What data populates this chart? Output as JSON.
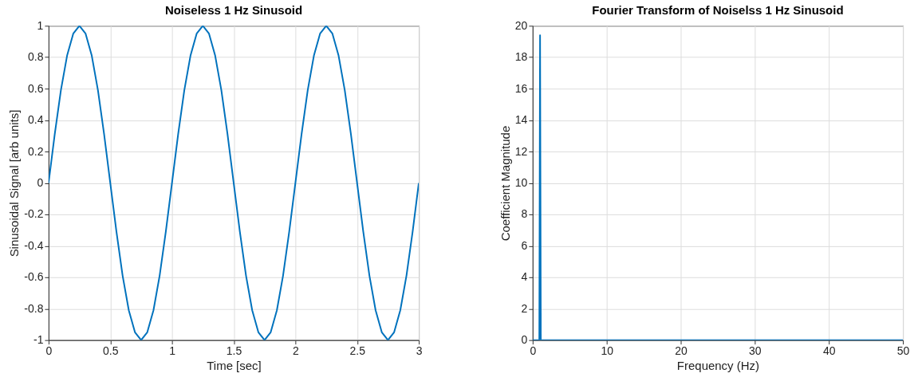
{
  "chart_data": [
    {
      "type": "line",
      "title": "Noiseless 1 Hz Sinusoid",
      "xlabel": "Time [sec]",
      "ylabel": "Sinusoidal Signal [arb units]",
      "grid": true,
      "xlim": [
        0,
        3
      ],
      "xticks": [
        0,
        0.5,
        1,
        1.5,
        2,
        2.5,
        3
      ],
      "ylim": [
        -1,
        1
      ],
      "yticks": [
        -1,
        -0.8,
        -0.6,
        -0.4,
        -0.2,
        0,
        0.2,
        0.4,
        0.6,
        0.8,
        1
      ],
      "series": [
        {
          "color": "#0072bd",
          "x": [
            0,
            0.05,
            0.1,
            0.15,
            0.2,
            0.25,
            0.3,
            0.35,
            0.4,
            0.45,
            0.5,
            0.55,
            0.6,
            0.65,
            0.7,
            0.75,
            0.8,
            0.85,
            0.9,
            0.95,
            1,
            1.05,
            1.1,
            1.15,
            1.2,
            1.25,
            1.3,
            1.35,
            1.4,
            1.45,
            1.5,
            1.55,
            1.6,
            1.65,
            1.7,
            1.75,
            1.8,
            1.85,
            1.9,
            1.95,
            2,
            2.05,
            2.1,
            2.15,
            2.2,
            2.25,
            2.3,
            2.35,
            2.4,
            2.45,
            2.5,
            2.55,
            2.6,
            2.65,
            2.7,
            2.75,
            2.8,
            2.85,
            2.9,
            2.95,
            3
          ],
          "values": [
            0,
            0.31,
            0.59,
            0.81,
            0.95,
            1,
            0.95,
            0.81,
            0.59,
            0.31,
            0,
            -0.31,
            -0.59,
            -0.81,
            -0.95,
            -1,
            -0.95,
            -0.81,
            -0.59,
            -0.31,
            0,
            0.31,
            0.59,
            0.81,
            0.95,
            1,
            0.95,
            0.81,
            0.59,
            0.31,
            0,
            -0.31,
            -0.59,
            -0.81,
            -0.95,
            -1,
            -0.95,
            -0.81,
            -0.59,
            -0.31,
            0,
            0.31,
            0.59,
            0.81,
            0.95,
            1,
            0.95,
            0.81,
            0.59,
            0.31,
            0,
            -0.31,
            -0.59,
            -0.81,
            -0.95,
            -1,
            -0.95,
            -0.81,
            -0.59,
            -0.31,
            0
          ]
        }
      ]
    },
    {
      "type": "line",
      "title": "Fourier Transform of Noiselss 1 Hz Sinusoid",
      "xlabel": "Frequency (Hz)",
      "ylabel": "Coefficient Magnitude",
      "grid": true,
      "xlim": [
        0,
        50
      ],
      "xticks": [
        0,
        10,
        20,
        30,
        40,
        50
      ],
      "ylim": [
        0,
        20
      ],
      "yticks": [
        0,
        2,
        4,
        6,
        8,
        10,
        12,
        14,
        16,
        18,
        20
      ],
      "series": [
        {
          "color": "#0072bd",
          "x": [
            0,
            0.9,
            1,
            1.1,
            50
          ],
          "values": [
            0,
            0,
            19.4,
            0,
            0
          ]
        }
      ]
    }
  ]
}
